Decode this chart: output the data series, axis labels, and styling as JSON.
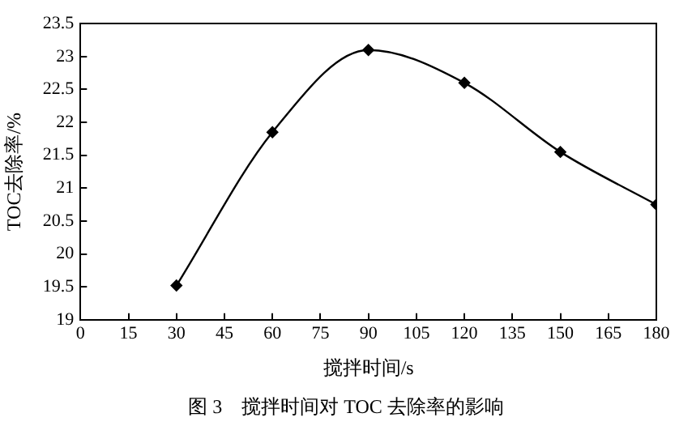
{
  "chart_data": {
    "type": "line",
    "xlabel": "搅拌时间/s",
    "ylabel": "TOC去除率/%",
    "annotations": [
      "图 3　搅拌时间对 TOC 去除率的影响"
    ],
    "x": [
      30,
      60,
      90,
      120,
      150,
      180
    ],
    "series": [
      {
        "color": "#000000",
        "values": [
          19.52,
          21.85,
          23.1,
          22.6,
          21.55,
          20.75
        ]
      }
    ],
    "xlim": [
      0,
      180
    ],
    "xticks": [
      0,
      15,
      30,
      45,
      60,
      75,
      90,
      105,
      120,
      135,
      150,
      165,
      180
    ],
    "ylim": [
      19,
      23.5
    ],
    "yticks": [
      19,
      19.5,
      20,
      20.5,
      21,
      21.5,
      22,
      22.5,
      23,
      23.5
    ],
    "grid": false,
    "legend": false,
    "marker": "diamond",
    "line_style": "solid"
  }
}
